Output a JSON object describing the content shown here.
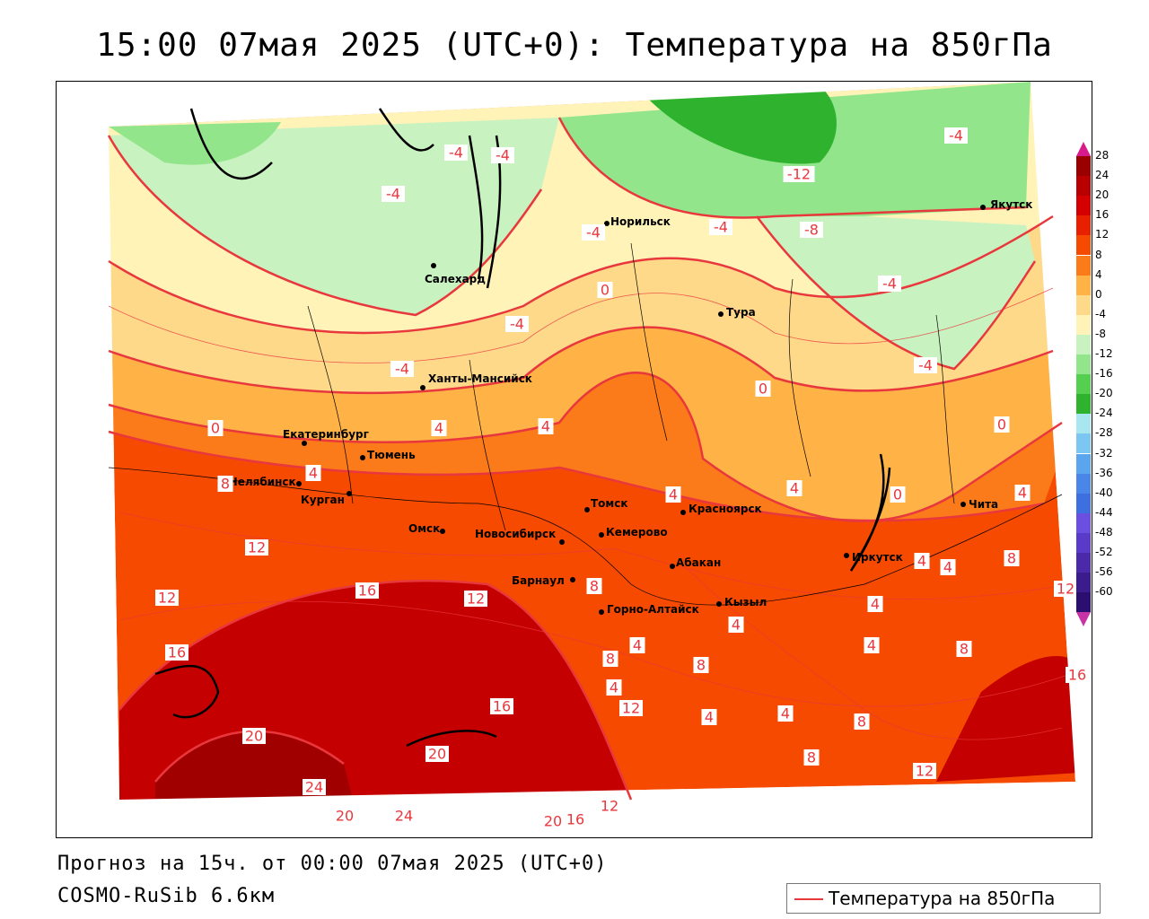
{
  "header": {
    "title": "15:00 07мая 2025 (UTC+0): Температура на 850гПа"
  },
  "footer": {
    "forecast": "Прогноз на 15ч. от 00:00 07мая 2025 (UTC+0)",
    "model": "COSMO-RuSib 6.6км"
  },
  "legend": {
    "label": "Температура на 850гПа",
    "line_color": "#e8383d"
  },
  "colorbar": {
    "levels": [
      {
        "label": "28",
        "color": "#9b0000"
      },
      {
        "label": "24",
        "color": "#b80000"
      },
      {
        "label": "20",
        "color": "#d40000"
      },
      {
        "label": "16",
        "color": "#e82000"
      },
      {
        "label": "12",
        "color": "#f54a00"
      },
      {
        "label": "8",
        "color": "#fb7a1a"
      },
      {
        "label": "4",
        "color": "#ffb347"
      },
      {
        "label": "0",
        "color": "#ffd98a"
      },
      {
        "label": "-4",
        "color": "#fff3b8"
      },
      {
        "label": "-8",
        "color": "#c8f2c0"
      },
      {
        "label": "-12",
        "color": "#92e58b"
      },
      {
        "label": "-16",
        "color": "#55cf4f"
      },
      {
        "label": "-20",
        "color": "#2fb32f"
      },
      {
        "label": "-24",
        "color": "#a8e6f0"
      },
      {
        "label": "-28",
        "color": "#7cc6f2"
      },
      {
        "label": "-32",
        "color": "#5aa5ee"
      },
      {
        "label": "-36",
        "color": "#4a86e8"
      },
      {
        "label": "-40",
        "color": "#3e6fe0"
      },
      {
        "label": "-44",
        "color": "#6a4fe0"
      },
      {
        "label": "-48",
        "color": "#5a3ac8"
      },
      {
        "label": "-52",
        "color": "#4a2aa8"
      },
      {
        "label": "-56",
        "color": "#3a1c8c"
      },
      {
        "label": "-60",
        "color": "#2a0f70"
      }
    ]
  },
  "cities": [
    {
      "name": "Якутск"
    },
    {
      "name": "Норильск"
    },
    {
      "name": "Салехард"
    },
    {
      "name": "Тура"
    },
    {
      "name": "Ханты-Мансийск"
    },
    {
      "name": "Екатеринбург"
    },
    {
      "name": "Тюмень"
    },
    {
      "name": "Челябинск"
    },
    {
      "name": "Курган"
    },
    {
      "name": "Омск"
    },
    {
      "name": "Новосибирск"
    },
    {
      "name": "Томск"
    },
    {
      "name": "Кемерово"
    },
    {
      "name": "Красноярск"
    },
    {
      "name": "Барнаул"
    },
    {
      "name": "Абакан"
    },
    {
      "name": "Иркутск"
    },
    {
      "name": "Чита"
    },
    {
      "name": "Горно-Алтайск"
    },
    {
      "name": "Кызыл"
    }
  ],
  "isotherm_labels": [
    "-4",
    "-4",
    "-4",
    "-4",
    "-12",
    "-8",
    "-4",
    "-4",
    "-4",
    "-4",
    "-4",
    "0",
    "0",
    "0",
    "0",
    "4",
    "4",
    "4",
    "4",
    "4",
    "8",
    "4",
    "0",
    "4",
    "4",
    "8",
    "12",
    "12",
    "16",
    "12",
    "8",
    "4",
    "4",
    "4",
    "4",
    "8",
    "16",
    "8",
    "4",
    "8",
    "12",
    "4",
    "4",
    "8",
    "8",
    "16",
    "16",
    "20",
    "20",
    "24",
    "20",
    "24",
    "20",
    "16",
    "12",
    "12",
    "12",
    "-4"
  ]
}
